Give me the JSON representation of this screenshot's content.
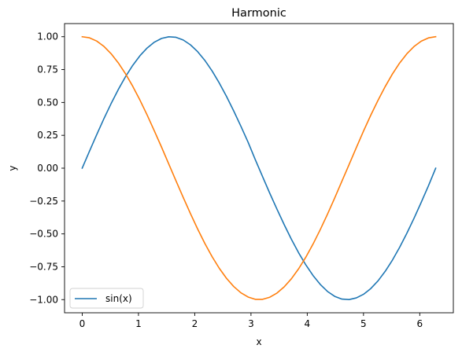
{
  "chart_data": {
    "type": "line",
    "title": "Harmonic",
    "xlabel": "x",
    "ylabel": "y",
    "xlim": [
      -0.314,
      6.597
    ],
    "ylim": [
      -1.1,
      1.1
    ],
    "xticks": [
      0,
      1,
      2,
      3,
      4,
      5,
      6
    ],
    "xtick_labels": [
      "0",
      "1",
      "2",
      "3",
      "4",
      "5",
      "6"
    ],
    "yticks": [
      1.0,
      0.75,
      0.5,
      0.25,
      0.0,
      -0.25,
      -0.5,
      -0.75,
      -1.0
    ],
    "ytick_labels": [
      "1.00",
      "0.75",
      "0.50",
      "0.25",
      "0.00",
      "−0.25",
      "−0.50",
      "−0.75",
      "−1.00"
    ],
    "grid": false,
    "legend_position": "lower-left",
    "x": [
      0.0,
      0.1282,
      0.2565,
      0.3847,
      0.5129,
      0.6411,
      0.7694,
      0.8976,
      1.0258,
      1.1541,
      1.2823,
      1.4105,
      1.5387,
      1.667,
      1.7952,
      1.9234,
      2.0517,
      2.1799,
      2.3081,
      2.4363,
      2.5646,
      2.6928,
      2.821,
      2.9493,
      3.0775,
      3.2057,
      3.3339,
      3.4622,
      3.5904,
      3.7186,
      3.8468,
      3.9751,
      4.1033,
      4.2315,
      4.3598,
      4.488,
      4.6162,
      4.7444,
      4.8727,
      5.0009,
      5.1291,
      5.2574,
      5.3856,
      5.5138,
      5.642,
      5.7703,
      5.8985,
      6.0267,
      6.155,
      6.2832
    ],
    "series": [
      {
        "name": "sin(x)",
        "color": "#1f77b4",
        "values": [
          0.0,
          0.1279,
          0.2537,
          0.3753,
          0.4907,
          0.5981,
          0.6957,
          0.7818,
          0.855,
          0.9142,
          0.9585,
          0.9871,
          0.9995,
          0.9955,
          0.9751,
          0.9385,
          0.8865,
          0.8199,
          0.74,
          0.6482,
          0.5461,
          0.4355,
          0.3185,
          0.1971,
          0.0641,
          -0.0641,
          -0.1906,
          -0.3122,
          -0.4297,
          -0.5411,
          -0.6436,
          -0.736,
          -0.8167,
          -0.8843,
          -0.9377,
          -0.9749,
          -0.996,
          -0.9995,
          -0.9868,
          -0.9592,
          -0.9158,
          -0.8574,
          -0.7849,
          -0.6995,
          -0.6025,
          -0.4955,
          -0.3806,
          -0.2592,
          -0.1336,
          0.0
        ]
      },
      {
        "name": "",
        "color": "#ff7f0e",
        "values": [
          1.0,
          0.9918,
          0.9673,
          0.9269,
          0.8713,
          0.8014,
          0.7185,
          0.6235,
          0.5183,
          0.4045,
          0.2838,
          0.1599,
          0.0321,
          -0.0961,
          -0.2221,
          -0.3449,
          -0.4625,
          -0.5725,
          -0.6725,
          -0.7615,
          -0.8377,
          -0.9001,
          -0.9479,
          -0.9804,
          -0.9979,
          -0.9979,
          -0.9817,
          -0.9499,
          -0.9028,
          -0.8409,
          -0.7652,
          -0.6769,
          -0.5772,
          -0.4675,
          -0.35,
          -0.227,
          -0.099,
          0.0281,
          0.1568,
          0.2826,
          0.4029,
          0.5156,
          0.6207,
          0.7162,
          0.7998,
          0.8701,
          0.9258,
          0.9664,
          0.9911,
          1.0
        ]
      }
    ]
  }
}
